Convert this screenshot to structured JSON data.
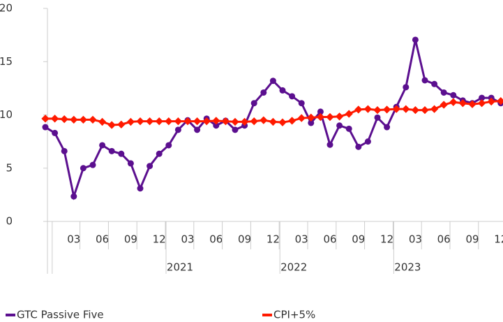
{
  "chart_data": {
    "type": "line",
    "categories": [
      null,
      null,
      null,
      "03",
      null,
      null,
      "06",
      null,
      null,
      "09",
      null,
      null,
      "12",
      null,
      null,
      "03",
      null,
      null,
      "06",
      null,
      null,
      "09",
      null,
      null,
      "12",
      null,
      null,
      "03",
      null,
      null,
      "06",
      null,
      null,
      "09",
      null,
      null,
      "12",
      null,
      null,
      "03",
      null,
      null,
      "06",
      null,
      null,
      "09",
      null,
      null,
      "12"
    ],
    "groups": [
      null,
      "2021",
      "2022",
      "2023"
    ],
    "series": [
      {
        "name": "GTC Passive Five",
        "color": "#5b0f8f",
        "values": [
          8.85,
          8.3,
          6.6,
          2.35,
          5.0,
          5.3,
          7.15,
          6.6,
          6.35,
          5.45,
          3.1,
          5.2,
          6.35,
          7.15,
          8.6,
          9.5,
          8.6,
          9.65,
          9.0,
          9.45,
          8.6,
          9.0,
          11.1,
          12.1,
          13.2,
          12.3,
          11.75,
          11.1,
          9.25,
          10.3,
          7.2,
          9.0,
          8.7,
          7.0,
          7.5,
          9.75,
          8.85,
          10.75,
          12.6,
          17.05,
          13.25,
          12.9,
          12.1,
          11.85,
          11.35,
          11.1,
          11.6,
          11.6,
          11.1
        ]
      },
      {
        "name": "CPI+5%",
        "color": "#ff1a00",
        "values": [
          9.65,
          9.65,
          9.6,
          9.55,
          9.55,
          9.55,
          9.35,
          9.05,
          9.1,
          9.35,
          9.4,
          9.4,
          9.4,
          9.4,
          9.4,
          9.4,
          9.4,
          9.4,
          9.45,
          9.4,
          9.35,
          9.35,
          9.4,
          9.5,
          9.35,
          9.3,
          9.45,
          9.7,
          9.75,
          9.8,
          9.8,
          9.85,
          10.1,
          10.5,
          10.55,
          10.45,
          10.5,
          10.55,
          10.55,
          10.45,
          10.45,
          10.55,
          10.95,
          11.2,
          11.1,
          11.0,
          11.1,
          11.25,
          11.3
        ]
      }
    ],
    "ylim": [
      0,
      20
    ],
    "yticks": [
      0,
      5,
      10,
      15,
      20
    ],
    "legend": "bottom"
  }
}
